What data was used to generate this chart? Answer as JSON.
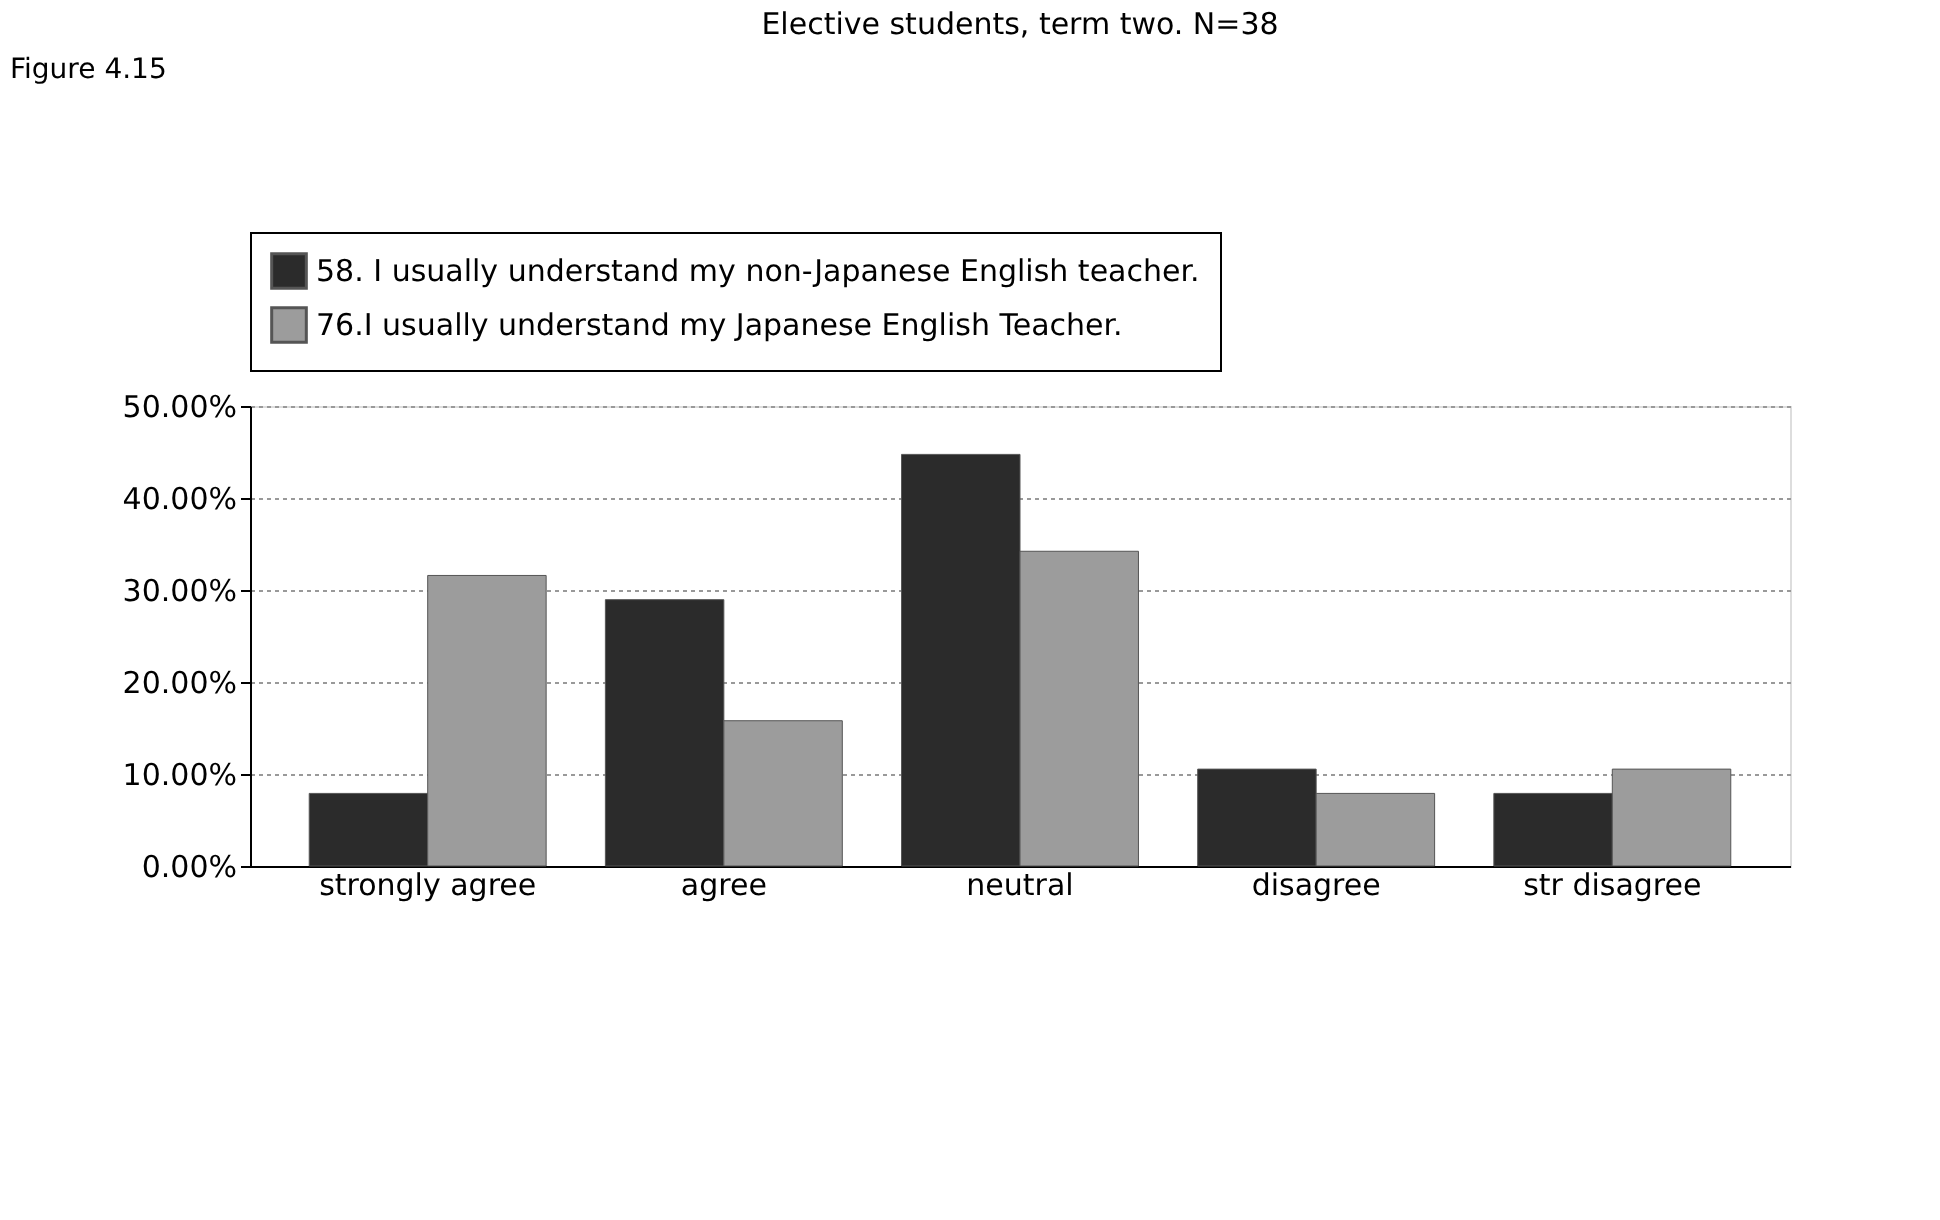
{
  "chart_data": {
    "type": "bar",
    "title": "Elective students, term two. N=38",
    "annotations": [
      "Figure 4.15"
    ],
    "categories": [
      "strongly agree",
      "agree",
      "neutral",
      "disagree",
      "str disagree"
    ],
    "series": [
      {
        "name": "58. I usually understand my non-Japanese English teacher.",
        "color": "#2b2b2b",
        "values": [
          7.89,
          28.95,
          44.74,
          10.53,
          7.89
        ]
      },
      {
        "name": "76.I usually understand my  Japanese English Teacher.",
        "color": "#9c9c9c",
        "values": [
          31.58,
          15.79,
          34.21,
          7.89,
          10.53
        ]
      }
    ],
    "ylim": [
      0,
      50
    ],
    "yticks": [
      {
        "value": 0,
        "label": "0.00%"
      },
      {
        "value": 10,
        "label": "10.00%"
      },
      {
        "value": 20,
        "label": "20.00%"
      },
      {
        "value": 30,
        "label": "30.00%"
      },
      {
        "value": 40,
        "label": "40.00%"
      },
      {
        "value": 50,
        "label": "50.00%"
      }
    ],
    "grid": "y",
    "legend": "top"
  }
}
